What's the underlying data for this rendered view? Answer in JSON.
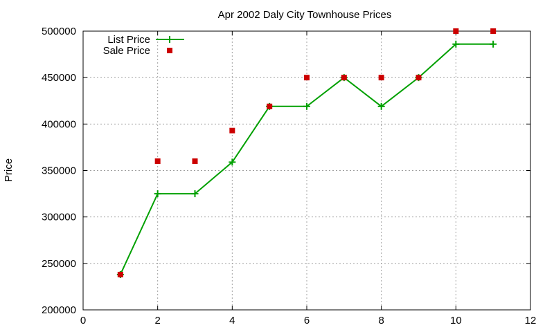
{
  "chart_data": {
    "type": "line",
    "title": "Apr 2002 Daly City Townhouse Prices",
    "xlabel": "",
    "ylabel": "Price",
    "xlim": [
      0,
      12
    ],
    "ylim": [
      200000,
      500000
    ],
    "xticks": [
      0,
      2,
      4,
      6,
      8,
      10,
      12
    ],
    "yticks": [
      200000,
      250000,
      300000,
      350000,
      400000,
      450000,
      500000
    ],
    "grid": true,
    "legend_position": "top-left",
    "series": [
      {
        "name": "List Price",
        "style": "linespoints",
        "color": "#00a000",
        "x": [
          1,
          2,
          3,
          4,
          5,
          6,
          7,
          8,
          9,
          10,
          11
        ],
        "y": [
          238000,
          325000,
          325000,
          359000,
          419000,
          419000,
          450000,
          419000,
          450000,
          486000,
          486000
        ]
      },
      {
        "name": "Sale Price",
        "style": "points",
        "color": "#cc0000",
        "x": [
          1,
          2,
          3,
          4,
          5,
          6,
          7,
          8,
          9,
          10,
          11
        ],
        "y": [
          238000,
          360000,
          360000,
          393000,
          419000,
          450000,
          450000,
          450000,
          450000,
          500000,
          500000
        ]
      }
    ]
  }
}
